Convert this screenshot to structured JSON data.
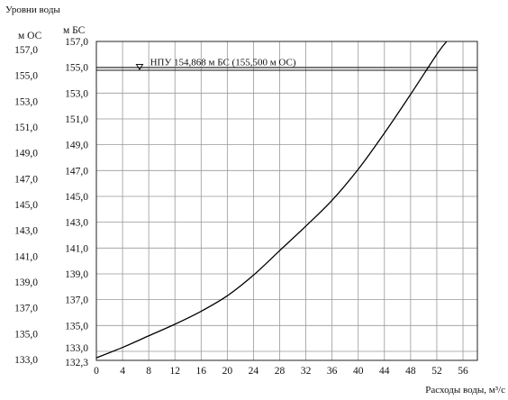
{
  "chart_data": {
    "type": "line",
    "title": "Уровни воды",
    "xlabel": "Расходы воды, м³/с",
    "ylabel_left": "м ОС",
    "ylabel_right": "м БС",
    "xlim": [
      0,
      58
    ],
    "ylim_bs": [
      132.3,
      157.0
    ],
    "x_ticks": [
      "0",
      "4",
      "8",
      "12",
      "16",
      "20",
      "24",
      "28",
      "32",
      "36",
      "40",
      "44",
      "48",
      "52",
      "56"
    ],
    "y_ticks_os": [
      "133,0",
      "135,0",
      "137,0",
      "139,0",
      "141,0",
      "143,0",
      "145,0",
      "147,0",
      "149,0",
      "151,0",
      "153,0",
      "155,0",
      "157,0"
    ],
    "y_ticks_bs": [
      "132,3",
      "133,0",
      "135,0",
      "137,0",
      "139,0",
      "141,0",
      "143,0",
      "145,0",
      "147,0",
      "149,0",
      "151,0",
      "153,0",
      "155,0",
      "157,0"
    ],
    "grid": true,
    "reference_line": {
      "label": "НПУ 154,868 м БС (155,500 м ОС)",
      "y_bs": 154.868
    },
    "series": [
      {
        "x": [
          0,
          4,
          8,
          12,
          16,
          20,
          24,
          28,
          32,
          36,
          40,
          44,
          48,
          52,
          53.5
        ],
        "y": [
          132.5,
          133.3,
          134.2,
          135.1,
          136.1,
          137.3,
          138.9,
          140.8,
          142.7,
          144.7,
          147.1,
          149.9,
          152.9,
          156.0,
          157.0
        ]
      }
    ]
  }
}
